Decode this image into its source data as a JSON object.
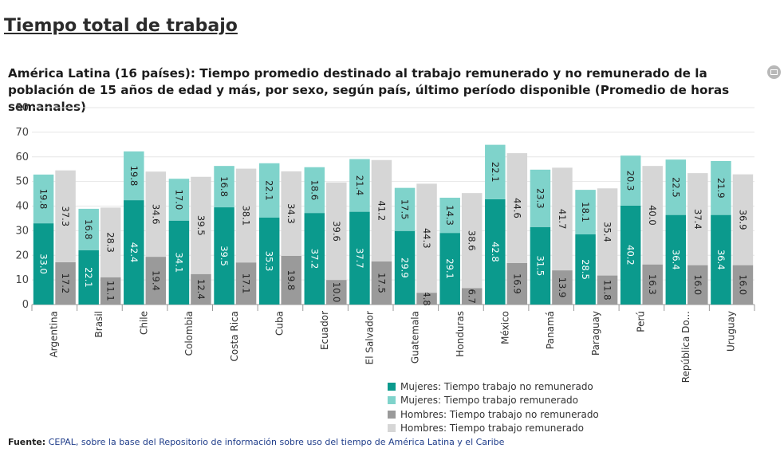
{
  "page": {
    "title": "Tiempo total de trabajo"
  },
  "chart_title": "América Latina (16 países): Tiempo promedio destinado al trabajo remunerado y no remunerado de la población de 15 años de edad y más, por sexo, según país, último período disponible (Promedio de horas semanales)",
  "source": {
    "label": "Fuente:",
    "text": "CEPAL, sobre la base del Repositorio de información sobre uso del tiempo de América Latina y el Caribe"
  },
  "colors": {
    "mujeres_no_remunerado": "#0b9a8d",
    "mujeres_remunerado": "#7fd3cb",
    "hombres_no_remunerado": "#9a9a9a",
    "hombres_remunerado": "#d6d6d6"
  },
  "legend": [
    {
      "label": "Mujeres: Tiempo trabajo no remunerado",
      "color": "#0b9a8d"
    },
    {
      "label": "Mujeres: Tiempo trabajo remunerado",
      "color": "#7fd3cb"
    },
    {
      "label": "Hombres: Tiempo trabajo no remunerado",
      "color": "#9a9a9a"
    },
    {
      "label": "Hombres: Tiempo trabajo remunerado",
      "color": "#d6d6d6"
    }
  ],
  "chart_data": {
    "type": "bar",
    "stacked": true,
    "grouped": true,
    "categories": [
      "Argentina",
      "Brasil",
      "Chile",
      "Colombia",
      "Costa Rica",
      "Cuba",
      "Ecuador",
      "El Salvador",
      "Guatemala",
      "Honduras",
      "México",
      "Panamá",
      "Paraguay",
      "Perú",
      "República Do...",
      "Uruguay"
    ],
    "ylim": [
      0,
      80
    ],
    "yticks": [
      0,
      10,
      20,
      30,
      40,
      50,
      60,
      70,
      80
    ],
    "grid": true,
    "legend_position": "bottom",
    "series": [
      {
        "name": "Mujeres: Tiempo trabajo no remunerado",
        "group": "Mujeres",
        "color": "#0b9a8d",
        "label_color": "#ffffff",
        "values": [
          33.0,
          22.1,
          42.4,
          34.1,
          39.5,
          35.3,
          37.2,
          37.7,
          29.9,
          29.1,
          42.8,
          31.5,
          28.5,
          40.2,
          36.4,
          36.4
        ]
      },
      {
        "name": "Mujeres: Tiempo trabajo remunerado",
        "group": "Mujeres",
        "color": "#7fd3cb",
        "label_color": "#222222",
        "values": [
          19.8,
          16.8,
          19.8,
          17.0,
          16.8,
          22.1,
          18.6,
          21.4,
          17.5,
          14.3,
          22.1,
          23.3,
          18.1,
          20.3,
          22.5,
          21.9
        ]
      },
      {
        "name": "Hombres: Tiempo trabajo no remunerado",
        "group": "Hombres",
        "color": "#9a9a9a",
        "label_color": "#222222",
        "values": [
          17.2,
          11.1,
          19.4,
          12.4,
          17.1,
          19.8,
          10.0,
          17.5,
          4.8,
          6.7,
          16.9,
          13.9,
          11.8,
          16.3,
          16.0,
          16.0
        ]
      },
      {
        "name": "Hombres: Tiempo trabajo remunerado",
        "group": "Hombres",
        "color": "#d6d6d6",
        "label_color": "#222222",
        "values": [
          37.3,
          28.3,
          34.6,
          39.5,
          38.1,
          34.3,
          39.6,
          41.2,
          44.3,
          38.6,
          44.6,
          41.7,
          35.4,
          40.0,
          37.4,
          36.9
        ]
      }
    ]
  }
}
